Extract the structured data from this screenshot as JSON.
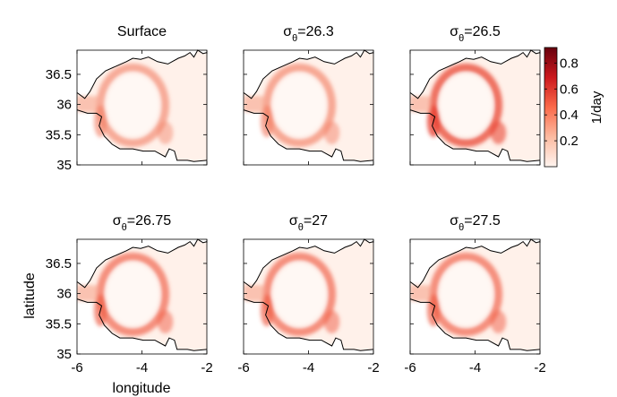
{
  "figure": {
    "xlabel": "longitude",
    "ylabel": "latitude"
  },
  "colorbar": {
    "label": "1/day",
    "ticks": [
      "0.2",
      "0.4",
      "0.6",
      "0.8"
    ],
    "tick_values": [
      0.2,
      0.4,
      0.6,
      0.8
    ],
    "range": [
      0,
      0.92
    ],
    "color_low": "#fff4ef",
    "color_high": "#67000d"
  },
  "chart_data": [
    {
      "type": "heatmap",
      "title": "Surface",
      "title_symbol": "",
      "title_subscript": "",
      "title_value": "",
      "xlim": [
        -6,
        -2
      ],
      "ylim": [
        35,
        36.9
      ],
      "x_ticks": [
        -6,
        -4,
        -2
      ],
      "y_ticks": [
        35,
        35.5,
        36,
        36.5
      ],
      "x_tick_labels": [],
      "y_tick_labels": [
        "35",
        "35.5",
        "36",
        "36.5"
      ],
      "peak_value": 0.45
    },
    {
      "type": "heatmap",
      "title": "",
      "title_symbol": "σ",
      "title_subscript": "θ",
      "title_value": "=26.3",
      "xlim": [
        -6,
        -2
      ],
      "ylim": [
        35,
        36.9
      ],
      "x_ticks": [
        -6,
        -4,
        -2
      ],
      "y_ticks": [
        35,
        35.5,
        36,
        36.5
      ],
      "x_tick_labels": [],
      "y_tick_labels": [],
      "peak_value": 0.5
    },
    {
      "type": "heatmap",
      "title": "",
      "title_symbol": "σ",
      "title_subscript": "θ",
      "title_value": "=26.5",
      "xlim": [
        -6,
        -2
      ],
      "ylim": [
        35,
        36.9
      ],
      "x_ticks": [
        -6,
        -4,
        -2
      ],
      "y_ticks": [
        35,
        35.5,
        36,
        36.5
      ],
      "x_tick_labels": [],
      "y_tick_labels": [],
      "peak_value": 0.7
    },
    {
      "type": "heatmap",
      "title": "",
      "title_symbol": "σ",
      "title_subscript": "θ",
      "title_value": "=26.75",
      "xlim": [
        -6,
        -2
      ],
      "ylim": [
        35,
        36.9
      ],
      "x_ticks": [
        -6,
        -4,
        -2
      ],
      "y_ticks": [
        35,
        35.5,
        36,
        36.5
      ],
      "x_tick_labels": [
        "-6",
        "-4",
        "-2"
      ],
      "y_tick_labels": [
        "35",
        "35.5",
        "36",
        "36.5"
      ],
      "peak_value": 0.55
    },
    {
      "type": "heatmap",
      "title": "",
      "title_symbol": "σ",
      "title_subscript": "θ",
      "title_value": "=27",
      "xlim": [
        -6,
        -2
      ],
      "ylim": [
        35,
        36.9
      ],
      "x_ticks": [
        -6,
        -4,
        -2
      ],
      "y_ticks": [
        35,
        35.5,
        36,
        36.5
      ],
      "x_tick_labels": [
        "-6",
        "-4",
        "-2"
      ],
      "y_tick_labels": [],
      "peak_value": 0.55
    },
    {
      "type": "heatmap",
      "title": "",
      "title_symbol": "σ",
      "title_subscript": "θ",
      "title_value": "=27.5",
      "xlim": [
        -6,
        -2
      ],
      "ylim": [
        35,
        36.9
      ],
      "x_ticks": [
        -6,
        -4,
        -2
      ],
      "y_ticks": [
        35,
        35.5,
        36,
        36.5
      ],
      "x_tick_labels": [
        "-6",
        "-4",
        "-2"
      ],
      "y_tick_labels": [],
      "peak_value": 0.55
    }
  ]
}
